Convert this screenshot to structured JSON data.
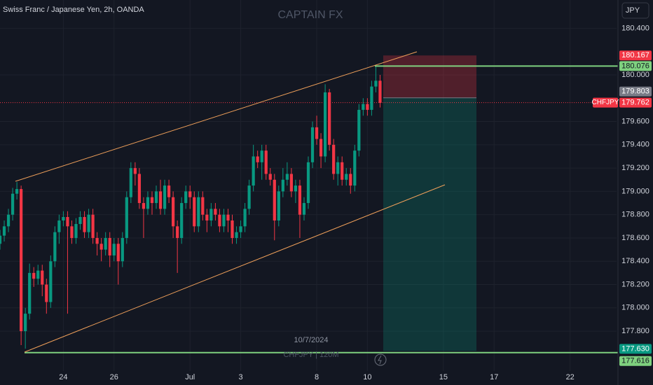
{
  "chart_data": {
    "type": "candlestick",
    "title": "Swiss Franc / Japanese Yen, 2h, OANDA",
    "watermark": "CAPTAIN FX",
    "currency": "JPY",
    "symbol": "CHFJPY",
    "date_label": "10/7/2024",
    "footer_watermark": "CHFJPY | 120M",
    "up_color": "#089981",
    "down_color": "#f23645",
    "grid": true,
    "xlim": [
      0,
      146
    ],
    "ylim": [
      177.458,
      180.643
    ],
    "xticks": [
      {
        "value": 15,
        "label": "24"
      },
      {
        "value": 27,
        "label": "26"
      },
      {
        "value": 45,
        "label": "Jul"
      },
      {
        "value": 57,
        "label": "3"
      },
      {
        "value": 75,
        "label": "8"
      },
      {
        "value": 87,
        "label": "10"
      },
      {
        "value": 105,
        "label": "15"
      },
      {
        "value": 117,
        "label": "17"
      },
      {
        "value": 135,
        "label": "22"
      }
    ],
    "yticks": [
      {
        "value": 177.8,
        "label": "177.800"
      },
      {
        "value": 178,
        "label": "178.000"
      },
      {
        "value": 178.2,
        "label": "178.200"
      },
      {
        "value": 178.4,
        "label": "178.400"
      },
      {
        "value": 178.6,
        "label": "178.600"
      },
      {
        "value": 178.8,
        "label": "178.800"
      },
      {
        "value": 179,
        "label": "179.000"
      },
      {
        "value": 179.2,
        "label": "179.200"
      },
      {
        "value": 179.4,
        "label": "179.400"
      },
      {
        "value": 179.6,
        "label": "179.600"
      },
      {
        "value": 180,
        "label": "180.000"
      },
      {
        "value": 180.4,
        "label": "180.400"
      }
    ],
    "open": [
      178.55,
      178.62,
      178.7,
      178.8,
      178.98,
      179.02,
      177.8,
      177.95,
      178.3,
      178.25,
      178.32,
      178.2,
      178.05,
      178.4,
      178.65,
      178.75,
      178.78,
      178.7,
      178.6,
      178.72,
      178.78,
      178.65,
      178.8,
      178.6,
      178.55,
      178.5,
      178.6,
      178.45,
      178.55,
      178.4,
      178.6,
      178.95,
      179.2,
      179.15,
      178.9,
      178.85,
      178.95,
      178.9,
      179.0,
      178.85,
      179.05,
      178.95,
      178.7,
      178.6,
      178.9,
      179.0,
      178.95,
      178.7,
      178.95,
      178.8,
      178.75,
      178.85,
      178.8,
      178.7,
      178.8,
      178.75,
      178.6,
      178.65,
      178.7,
      178.85,
      179.05,
      179.3,
      179.25,
      179.35,
      179.15,
      179.1,
      178.75,
      179.0,
      179.1,
      179.15,
      179.0,
      179.05,
      178.8,
      178.9,
      179.25,
      179.55,
      179.45,
      179.3,
      179.85,
      179.4,
      179.15,
      179.25,
      179.1,
      179.15,
      179.05,
      179.35,
      179.7,
      179.75,
      179.7,
      179.9,
      179.95
    ],
    "high": [
      178.67,
      178.75,
      178.85,
      179.03,
      179.08,
      179.05,
      178.0,
      178.38,
      178.35,
      178.37,
      178.37,
      178.25,
      178.45,
      178.7,
      178.8,
      178.83,
      178.83,
      178.75,
      178.77,
      178.83,
      178.83,
      178.85,
      178.85,
      178.65,
      178.6,
      178.65,
      178.65,
      178.6,
      178.6,
      178.65,
      179.0,
      179.25,
      179.25,
      179.2,
      178.95,
      179.0,
      179.0,
      179.05,
      179.1,
      179.1,
      179.1,
      179.0,
      178.75,
      178.95,
      179.05,
      179.05,
      179.0,
      179.0,
      179.0,
      178.85,
      178.9,
      178.9,
      178.85,
      178.85,
      178.85,
      178.8,
      178.7,
      178.75,
      178.9,
      179.1,
      179.4,
      179.35,
      179.4,
      179.4,
      179.2,
      179.15,
      179.05,
      179.2,
      179.25,
      179.2,
      179.1,
      179.1,
      178.95,
      179.3,
      179.6,
      179.65,
      179.5,
      179.92,
      179.88,
      179.45,
      179.3,
      179.3,
      179.2,
      179.2,
      179.4,
      179.75,
      179.8,
      179.8,
      179.95,
      180.07,
      180.0
    ],
    "low": [
      178.5,
      178.57,
      178.65,
      178.75,
      178.93,
      177.68,
      177.65,
      177.9,
      178.18,
      178.2,
      178.1,
      177.95,
      178.0,
      178.35,
      178.55,
      178.7,
      177.95,
      178.55,
      178.55,
      178.67,
      178.6,
      178.6,
      178.55,
      178.45,
      178.4,
      178.45,
      178.35,
      178.4,
      178.2,
      178.35,
      178.55,
      178.9,
      179.05,
      178.85,
      178.6,
      178.8,
      178.8,
      178.85,
      178.8,
      178.8,
      178.9,
      178.6,
      178.3,
      178.55,
      178.85,
      178.85,
      178.65,
      178.65,
      178.75,
      178.65,
      178.7,
      178.75,
      178.65,
      178.65,
      178.65,
      178.55,
      178.55,
      178.6,
      178.65,
      178.8,
      179.0,
      179.2,
      179.1,
      179.1,
      179.05,
      178.58,
      178.7,
      178.95,
      179.05,
      178.95,
      178.9,
      178.6,
      178.75,
      178.85,
      179.2,
      179.4,
      179.2,
      179.25,
      179.35,
      179.1,
      179.05,
      179.05,
      179.05,
      178.98,
      179.0,
      179.3,
      179.65,
      179.65,
      179.65,
      179.85,
      179.72
    ],
    "close": [
      178.62,
      178.7,
      178.8,
      178.98,
      179.02,
      177.8,
      177.95,
      178.3,
      178.25,
      178.32,
      178.2,
      178.05,
      178.4,
      178.65,
      178.75,
      178.78,
      178.7,
      178.6,
      178.72,
      178.78,
      178.65,
      178.8,
      178.6,
      178.55,
      178.5,
      178.6,
      178.45,
      178.55,
      178.4,
      178.6,
      178.95,
      179.2,
      179.15,
      178.9,
      178.85,
      178.95,
      178.9,
      179.0,
      178.85,
      179.05,
      178.95,
      178.7,
      178.6,
      178.9,
      179.0,
      178.95,
      178.7,
      178.95,
      178.8,
      178.75,
      178.85,
      178.8,
      178.7,
      178.8,
      178.75,
      178.6,
      178.65,
      178.7,
      178.85,
      179.05,
      179.3,
      179.25,
      179.35,
      179.15,
      179.1,
      178.75,
      179.0,
      179.1,
      179.15,
      179.0,
      179.05,
      178.8,
      178.9,
      179.25,
      179.55,
      179.45,
      179.3,
      179.85,
      179.4,
      179.15,
      179.25,
      179.1,
      179.15,
      179.05,
      179.35,
      179.7,
      179.75,
      179.7,
      179.9,
      179.95,
      179.76
    ],
    "position": {
      "stop": {
        "value": 180.167,
        "label": "180.167"
      },
      "entry": {
        "value": 179.803,
        "label": "179.803"
      },
      "target": {
        "value": 177.63,
        "label": "177.630"
      }
    },
    "levels": [
      {
        "value": 180.076,
        "label": "180.076"
      },
      {
        "value": 177.616,
        "label": "177.616"
      }
    ],
    "last_price": {
      "value": 179.762,
      "label": "179.762"
    }
  }
}
